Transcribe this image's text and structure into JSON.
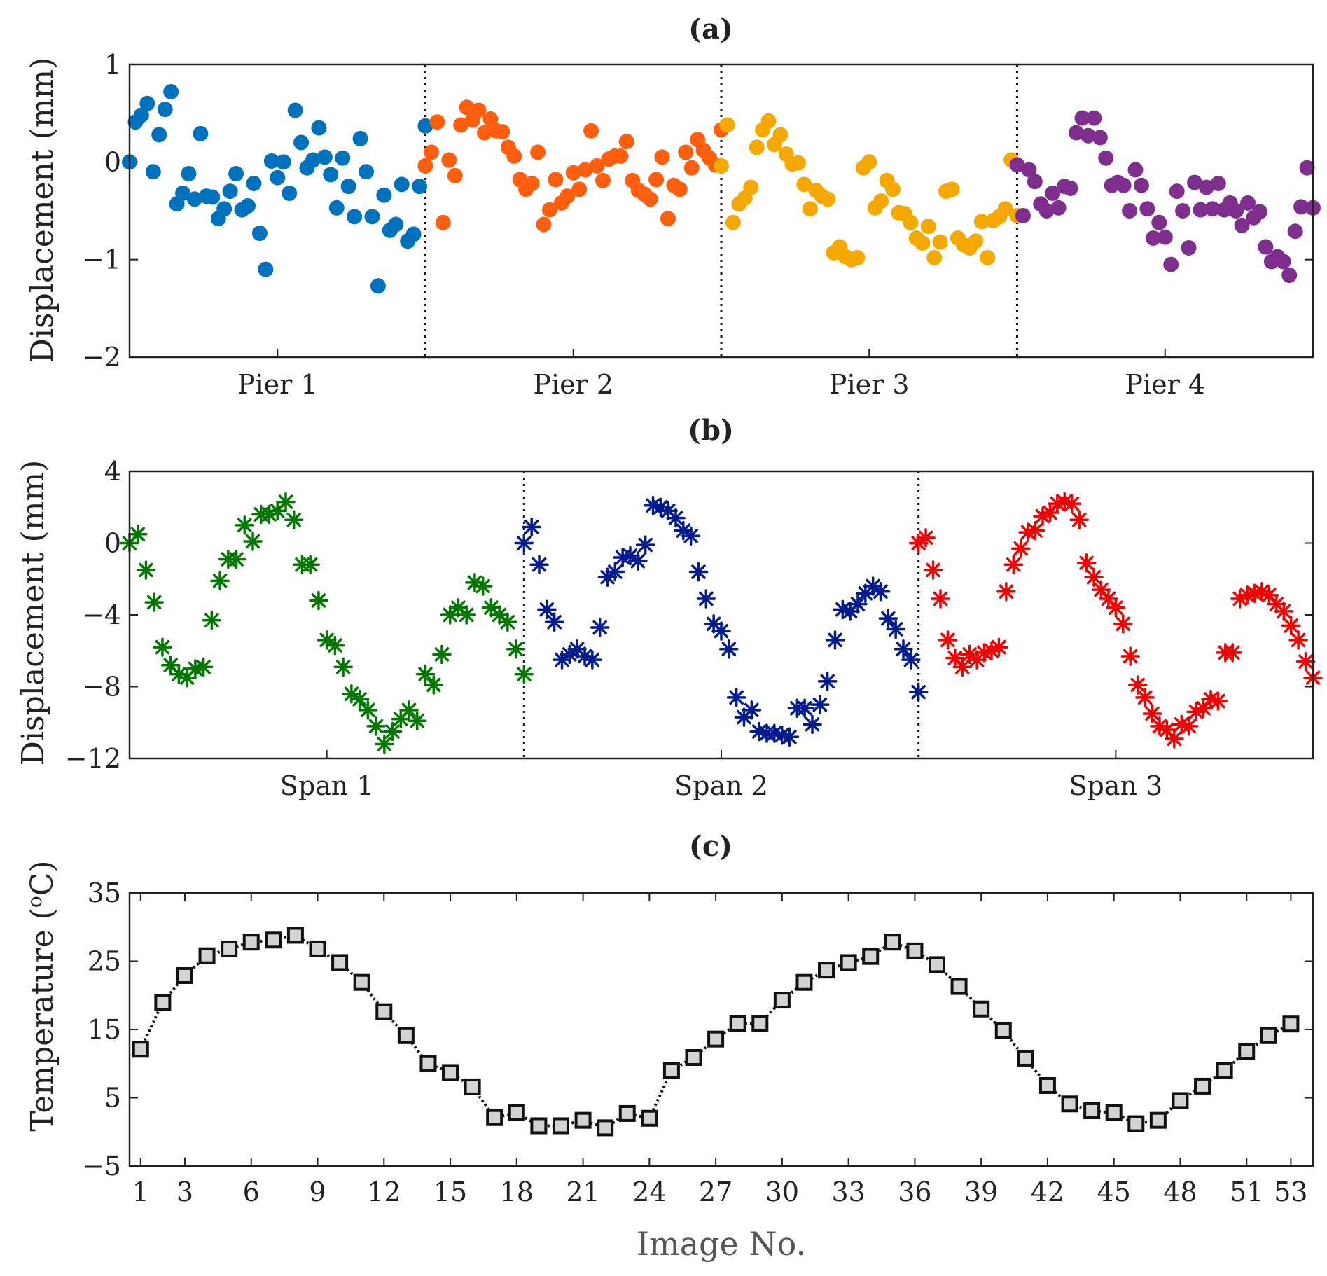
{
  "chart_data": [
    {
      "id": "a",
      "type": "scatter",
      "title": "(a)",
      "ylabel": "Displacement (mm)",
      "ylim": [
        -2,
        1
      ],
      "yticks": [
        -2,
        -1,
        0,
        1
      ],
      "ytick_labels": [
        "−2",
        "−1",
        "0",
        "1"
      ],
      "marker": "circle",
      "categories": [
        "Pier 1",
        "Pier 2",
        "Pier 3",
        "Pier 4"
      ],
      "series": [
        {
          "name": "Pier 1",
          "color": "#0072BD",
          "values": [
            0.0,
            0.41,
            0.48,
            0.6,
            -0.1,
            0.28,
            0.54,
            0.72,
            -0.43,
            -0.32,
            -0.12,
            -0.38,
            0.29,
            -0.35,
            -0.36,
            -0.58,
            -0.48,
            -0.3,
            -0.12,
            -0.49,
            -0.45,
            -0.22,
            -0.73,
            -1.1,
            0.01,
            -0.16,
            0.0,
            -0.32,
            0.53,
            0.2,
            -0.06,
            0.02,
            0.35,
            0.05,
            -0.13,
            -0.47,
            0.04,
            -0.25,
            -0.56,
            0.24,
            -0.1,
            -0.56,
            -1.27,
            -0.34,
            -0.7,
            -0.64,
            -0.23,
            -0.81,
            -0.74,
            -0.25,
            0.37
          ]
        },
        {
          "name": "Pier 2",
          "color": "#FF5E0E",
          "values": [
            -0.04,
            0.1,
            0.41,
            -0.62,
            0.02,
            -0.14,
            0.38,
            0.56,
            0.43,
            0.53,
            0.3,
            0.44,
            0.32,
            0.31,
            0.15,
            0.06,
            -0.18,
            -0.28,
            -0.22,
            0.1,
            -0.64,
            -0.49,
            -0.18,
            -0.42,
            -0.35,
            -0.11,
            -0.28,
            -0.08,
            0.32,
            -0.04,
            -0.19,
            0.03,
            0.06,
            0.06,
            0.21,
            -0.19,
            -0.29,
            -0.33,
            -0.38,
            -0.18,
            0.05,
            -0.58,
            -0.24,
            -0.28,
            0.1,
            -0.06,
            0.23,
            0.12,
            0.04,
            -0.03,
            0.33
          ]
        },
        {
          "name": "Pier 3",
          "color": "#F5A800",
          "values": [
            -0.04,
            0.38,
            -0.62,
            -0.43,
            -0.37,
            -0.26,
            0.15,
            0.33,
            0.42,
            0.18,
            0.28,
            0.08,
            -0.02,
            -0.01,
            -0.23,
            -0.48,
            -0.29,
            -0.35,
            -0.38,
            -0.93,
            -0.87,
            -0.97,
            -1.0,
            -0.98,
            -0.06,
            0.0,
            -0.47,
            -0.4,
            -0.19,
            -0.28,
            -0.52,
            -0.53,
            -0.62,
            -0.78,
            -0.83,
            -0.66,
            -0.98,
            -0.82,
            -0.3,
            -0.28,
            -0.78,
            -0.85,
            -0.88,
            -0.81,
            -0.61,
            -0.98,
            -0.6,
            -0.56,
            -0.48,
            0.02,
            -0.55
          ]
        },
        {
          "name": "Pier 4",
          "color": "#7E2F8E",
          "values": [
            -0.03,
            -0.55,
            -0.08,
            -0.2,
            -0.43,
            -0.5,
            -0.32,
            -0.47,
            -0.25,
            -0.27,
            0.3,
            0.45,
            0.27,
            0.45,
            0.25,
            0.04,
            -0.24,
            -0.21,
            -0.24,
            -0.5,
            -0.08,
            -0.24,
            -0.48,
            -0.78,
            -0.62,
            -0.77,
            -1.05,
            -0.3,
            -0.5,
            -0.88,
            -0.21,
            -0.49,
            -0.26,
            -0.48,
            -0.22,
            -0.49,
            -0.42,
            -0.5,
            -0.65,
            -0.42,
            -0.57,
            -0.51,
            -0.87,
            -1.02,
            -0.97,
            -1.02,
            -1.16,
            -0.71,
            -0.46,
            -0.06,
            -0.47
          ]
        }
      ]
    },
    {
      "id": "b",
      "type": "scatter",
      "title": "(b)",
      "ylabel": "Displacement (mm)",
      "ylim": [
        -12,
        4
      ],
      "yticks": [
        -12,
        -8,
        -4,
        0,
        4
      ],
      "ytick_labels": [
        "−12",
        "−8",
        "−4",
        "0",
        "4"
      ],
      "marker": "asterisk",
      "categories": [
        "Span 1",
        "Span 2",
        "Span 3"
      ],
      "series": [
        {
          "name": "Span 1",
          "color": "#007800",
          "values": [
            0.0,
            0.5,
            -1.5,
            -3.3,
            -5.8,
            -6.8,
            -7.3,
            -7.5,
            -7.0,
            -6.9,
            -4.3,
            -2.1,
            -0.9,
            -0.9,
            1.0,
            0.1,
            1.6,
            1.6,
            1.8,
            2.3,
            1.3,
            -1.2,
            -1.2,
            -3.2,
            -5.4,
            -5.7,
            -6.9,
            -8.4,
            -8.7,
            -9.3,
            -10.2,
            -11.2,
            -10.5,
            -9.8,
            -9.3,
            -9.9,
            -7.3,
            -7.9,
            -6.2,
            -4.0,
            -3.6,
            -4.0,
            -2.2,
            -2.4,
            -3.6,
            -4.0,
            -4.4,
            -5.9,
            -7.3
          ]
        },
        {
          "name": "Span 2",
          "color": "#001A8F",
          "values": [
            0.0,
            0.9,
            -1.2,
            -3.7,
            -4.4,
            -6.5,
            -6.2,
            -5.9,
            -6.3,
            -6.5,
            -4.7,
            -1.9,
            -1.6,
            -0.8,
            -0.7,
            -1.0,
            -0.1,
            2.1,
            2.0,
            1.8,
            1.4,
            0.7,
            0.4,
            -1.6,
            -3.1,
            -4.5,
            -4.9,
            -5.9,
            -8.6,
            -9.7,
            -9.3,
            -10.5,
            -10.6,
            -10.6,
            -10.7,
            -10.8,
            -9.2,
            -9.2,
            -10.1,
            -9.0,
            -7.7,
            -5.4,
            -3.7,
            -3.8,
            -3.4,
            -2.8,
            -2.4,
            -2.7,
            -4.2,
            -4.8,
            -5.9,
            -6.5,
            -8.3
          ]
        },
        {
          "name": "Span 3",
          "color": "#F00000",
          "values": [
            0.0,
            0.3,
            -1.5,
            -3.1,
            -5.4,
            -6.4,
            -6.9,
            -6.2,
            -6.5,
            -6.1,
            -6.0,
            -5.8,
            -2.7,
            -1.2,
            -0.3,
            0.6,
            0.7,
            1.5,
            1.7,
            2.2,
            2.3,
            2.2,
            1.3,
            -1.1,
            -1.9,
            -2.6,
            -3.1,
            -3.6,
            -4.5,
            -6.3,
            -7.9,
            -8.6,
            -9.5,
            -10.2,
            -10.4,
            -10.9,
            -10.1,
            -10.2,
            -9.4,
            -9.2,
            -8.7,
            -8.8,
            -6.1,
            -6.1,
            -3.1,
            -2.9,
            -2.8,
            -2.7,
            -2.9,
            -3.4,
            -3.8,
            -4.6,
            -5.4,
            -6.6,
            -7.5
          ]
        }
      ]
    },
    {
      "id": "c",
      "type": "line",
      "title": "(c)",
      "ylabel": "Temperature (°C)",
      "ylabel_main": "Temperature (",
      "ylabel_sup": "o",
      "ylabel_end": "C)",
      "xlabel": "Image No.",
      "ylim": [
        -5,
        35
      ],
      "yticks": [
        -5,
        5,
        15,
        25,
        35
      ],
      "ytick_labels": [
        "−5",
        "5",
        "15",
        "25",
        "35"
      ],
      "xlim": [
        0.5,
        54
      ],
      "xticks": [
        1,
        3,
        6,
        9,
        12,
        15,
        18,
        21,
        24,
        27,
        30,
        33,
        36,
        39,
        42,
        45,
        48,
        51,
        53
      ],
      "xtick_labels": [
        "1",
        "3",
        "6",
        "9",
        "12",
        "15",
        "18",
        "21",
        "24",
        "27",
        "30",
        "33",
        "36",
        "39",
        "42",
        "45",
        "48",
        "51",
        "53"
      ],
      "marker": "square",
      "line_color": "#111111",
      "marker_fill": "#d3d3d3",
      "x": [
        1,
        2,
        3,
        4,
        5,
        6,
        7,
        8,
        9,
        10,
        11,
        12,
        13,
        14,
        15,
        16,
        17,
        18,
        19,
        20,
        21,
        22,
        23,
        24,
        25,
        26,
        27,
        28,
        29,
        30,
        31,
        32,
        33,
        34,
        35,
        36,
        37,
        38,
        39,
        40,
        41,
        42,
        43,
        44,
        45,
        46,
        47,
        48,
        49,
        50,
        51,
        52,
        53
      ],
      "values": [
        12.1,
        19.0,
        22.9,
        25.8,
        26.8,
        27.8,
        28.1,
        28.8,
        26.8,
        24.8,
        21.9,
        17.6,
        14.1,
        10.0,
        8.7,
        6.6,
        2.1,
        2.8,
        0.9,
        0.9,
        1.7,
        0.6,
        2.7,
        2.0,
        9.0,
        10.9,
        13.6,
        15.9,
        15.9,
        19.3,
        21.9,
        23.7,
        24.8,
        25.7,
        27.8,
        26.5,
        24.5,
        21.3,
        18.0,
        14.8,
        10.8,
        6.8,
        4.1,
        3.1,
        2.8,
        1.2,
        1.7,
        4.6,
        6.7,
        9.0,
        11.8,
        14.1,
        15.8
      ]
    }
  ]
}
